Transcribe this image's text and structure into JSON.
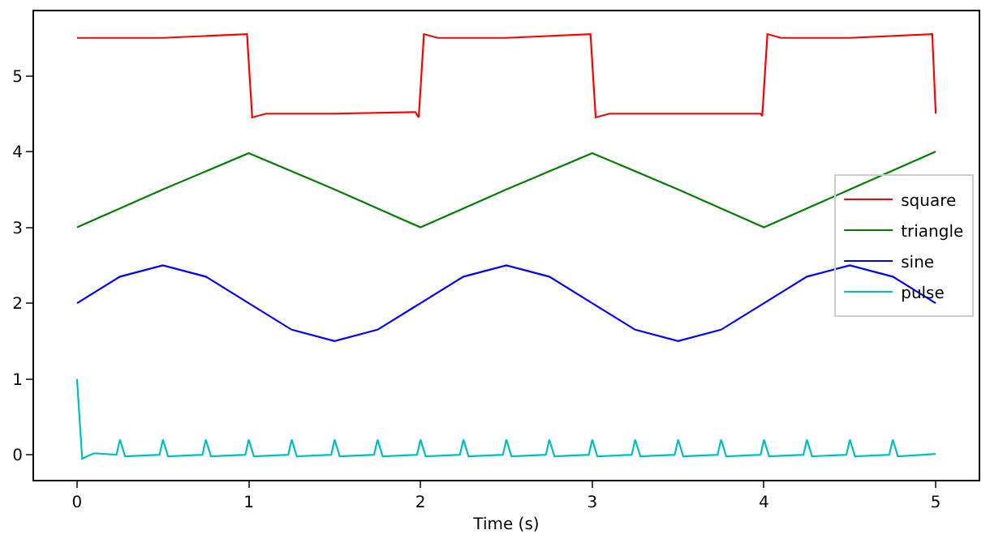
{
  "chart_data": {
    "type": "line",
    "xlabel": "Time (s)",
    "xlim": [
      -0.25,
      5.25
    ],
    "ylim": [
      -0.33,
      5.85
    ],
    "xticks": [
      0,
      1,
      2,
      3,
      4,
      5
    ],
    "yticks": [
      0,
      1,
      2,
      3,
      4,
      5
    ],
    "grid": false,
    "legend": "right",
    "marker": "none",
    "line_style": "solid",
    "series": [
      {
        "name": "square",
        "color": "#ff0000",
        "x": [
          0,
          0.5,
          0.99,
          1.02,
          1.1,
          1.5,
          1.97,
          1.99,
          2.02,
          2.1,
          2.5,
          2.99,
          3.02,
          3.1,
          3.5,
          3.98,
          3.99,
          4.02,
          4.1,
          4.5,
          4.98,
          5
        ],
        "values": [
          5.5,
          5.5,
          5.55,
          4.45,
          4.5,
          4.5,
          4.52,
          4.45,
          5.55,
          5.5,
          5.5,
          5.55,
          4.45,
          4.5,
          4.5,
          4.5,
          4.47,
          5.55,
          5.5,
          5.5,
          5.55,
          4.5
        ]
      },
      {
        "name": "triangle",
        "color": "#008000",
        "x": [
          0,
          0.5,
          1,
          1.5,
          2,
          2.5,
          3,
          3.5,
          4,
          4.5,
          5
        ],
        "values": [
          3,
          3.5,
          3.98,
          3.5,
          3,
          3.5,
          3.98,
          3.5,
          3,
          3.5,
          4
        ]
      },
      {
        "name": "sine",
        "color": "#0000ff",
        "x": [
          0,
          0.25,
          0.5,
          0.75,
          1,
          1.25,
          1.5,
          1.75,
          2,
          2.25,
          2.5,
          2.75,
          3,
          3.25,
          3.5,
          3.75,
          4,
          4.25,
          4.5,
          4.75,
          5
        ],
        "values": [
          2,
          2.35,
          2.5,
          2.35,
          2,
          1.65,
          1.5,
          1.65,
          2,
          2.35,
          2.5,
          2.35,
          2,
          1.65,
          1.5,
          1.65,
          2,
          2.35,
          2.5,
          2.35,
          2
        ]
      },
      {
        "name": "pulse",
        "color": "#00bfbf",
        "x": [
          0,
          0.03,
          0.1,
          0.23,
          0.25,
          0.28,
          0.48,
          0.5,
          0.53,
          0.73,
          0.75,
          0.78,
          0.98,
          1,
          1.03,
          1.23,
          1.25,
          1.28,
          1.48,
          1.5,
          1.53,
          1.73,
          1.75,
          1.78,
          1.98,
          2,
          2.03,
          2.23,
          2.25,
          2.28,
          2.48,
          2.5,
          2.53,
          2.73,
          2.75,
          2.78,
          2.98,
          3,
          3.03,
          3.23,
          3.25,
          3.28,
          3.48,
          3.5,
          3.53,
          3.73,
          3.75,
          3.78,
          3.98,
          4,
          4.03,
          4.23,
          4.25,
          4.28,
          4.48,
          4.5,
          4.53,
          4.73,
          4.75,
          4.78,
          5
        ],
        "values": [
          1,
          -0.05,
          0.02,
          0,
          0.2,
          -0.02,
          0,
          0.2,
          -0.02,
          0,
          0.2,
          -0.02,
          0,
          0.2,
          -0.02,
          0,
          0.2,
          -0.02,
          0,
          0.2,
          -0.02,
          0,
          0.2,
          -0.02,
          0,
          0.2,
          -0.02,
          0,
          0.2,
          -0.02,
          0,
          0.2,
          -0.02,
          0,
          0.2,
          -0.02,
          0,
          0.2,
          -0.02,
          0,
          0.2,
          -0.02,
          0,
          0.2,
          -0.02,
          0,
          0.2,
          -0.02,
          0,
          0.2,
          -0.02,
          0,
          0.2,
          -0.02,
          0,
          0.2,
          -0.02,
          0,
          0.2,
          -0.02,
          0.01
        ]
      }
    ]
  }
}
